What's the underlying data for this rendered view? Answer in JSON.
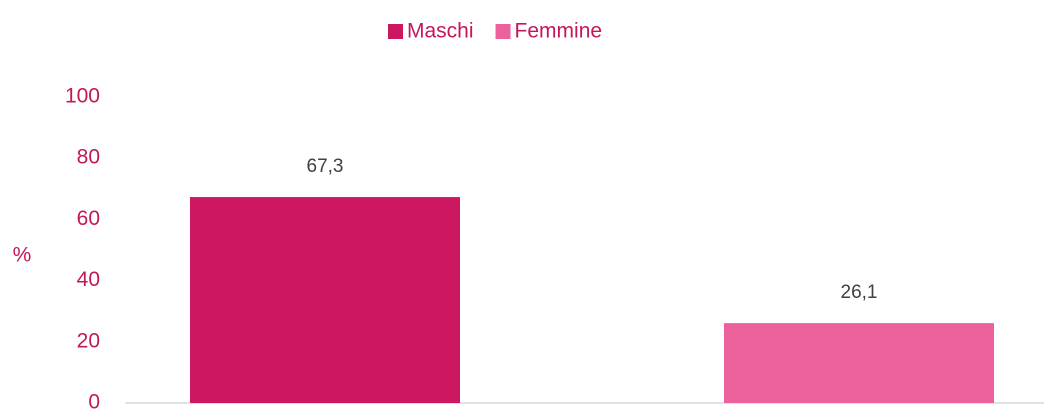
{
  "chart_data": {
    "type": "bar",
    "categories": [
      null,
      null
    ],
    "series": [
      {
        "name": "Maschi",
        "color": "#cc1760",
        "values": [
          67.3,
          null
        ],
        "value_labels": [
          "67,3",
          null
        ]
      },
      {
        "name": "Femmine",
        "color": "#ec619b",
        "values": [
          null,
          26.1
        ],
        "value_labels": [
          null,
          "26,1"
        ]
      }
    ],
    "ylabel": "%",
    "ylim": [
      0,
      100
    ],
    "yticks": [
      0,
      20,
      40,
      60,
      80,
      100
    ],
    "grid": false,
    "legend": "top"
  }
}
